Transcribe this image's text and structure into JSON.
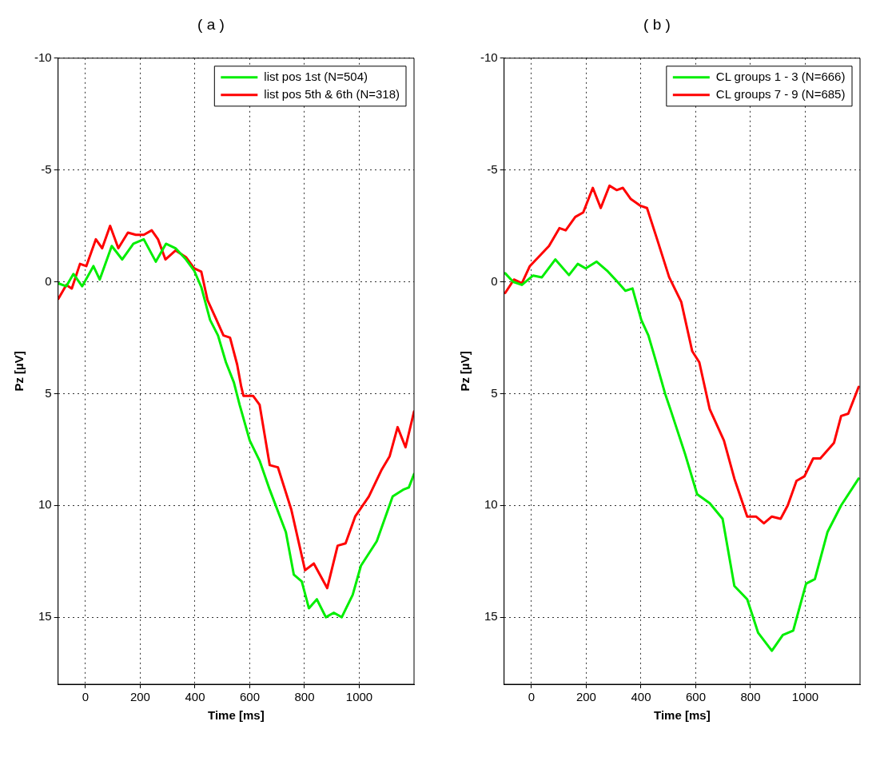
{
  "chart_data": [
    {
      "type": "line",
      "title": "( a )",
      "xlabel": "Time [ms]",
      "ylabel": "Pz [µV]",
      "xlim": [
        -100,
        1200
      ],
      "ylim": [
        18,
        -10
      ],
      "xticks": [
        0,
        200,
        400,
        600,
        800,
        1000
      ],
      "yticks": [
        -10,
        -5,
        0,
        5,
        10,
        15
      ],
      "grid": true,
      "legend": "top right",
      "marker": "none",
      "line_style": "solid",
      "series": [
        {
          "name": "list pos 1st (N=504)",
          "color": "#00ee00",
          "x": [
            -99,
            -70,
            -44,
            -12,
            29,
            52,
            96,
            134,
            175,
            213,
            257,
            294,
            329,
            367,
            397,
            423,
            455,
            484,
            513,
            542,
            563,
            600,
            636,
            673,
            732,
            761,
            790,
            816,
            845,
            878,
            907,
            936,
            976,
            1006,
            1064,
            1122,
            1160,
            1181,
            1200
          ],
          "values": [
            0.07,
            0.2,
            -0.35,
            0.2,
            -0.7,
            -0.1,
            -1.6,
            -1.0,
            -1.7,
            -1.9,
            -0.9,
            -1.7,
            -1.5,
            -1.0,
            -0.5,
            0.24,
            1.7,
            2.4,
            3.6,
            4.5,
            5.5,
            7.1,
            8.0,
            9.3,
            11.2,
            13.1,
            13.4,
            14.6,
            14.2,
            15.0,
            14.8,
            15.0,
            14.0,
            12.7,
            11.6,
            9.6,
            9.3,
            9.2,
            8.6
          ]
        },
        {
          "name": "list pos 5th & 6th (N=318)",
          "color": "#ff0000",
          "x": [
            -99,
            -70,
            -50,
            -20,
            3,
            38,
            61,
            90,
            120,
            155,
            184,
            213,
            242,
            265,
            292,
            329,
            367,
            397,
            423,
            446,
            475,
            504,
            528,
            554,
            569,
            577,
            612,
            636,
            673,
            703,
            752,
            802,
            834,
            883,
            921,
            950,
            985,
            1035,
            1082,
            1111,
            1140,
            1169,
            1200
          ],
          "values": [
            0.76,
            0.14,
            0.3,
            -0.8,
            -0.7,
            -1.9,
            -1.5,
            -2.5,
            -1.5,
            -2.2,
            -2.1,
            -2.1,
            -2.3,
            -1.9,
            -1.0,
            -1.4,
            -1.1,
            -0.6,
            -0.45,
            0.83,
            1.6,
            2.4,
            2.5,
            3.7,
            4.7,
            5.1,
            5.1,
            5.5,
            8.2,
            8.3,
            10.2,
            12.9,
            12.6,
            13.7,
            11.8,
            11.7,
            10.5,
            9.6,
            8.4,
            7.8,
            6.5,
            7.4,
            5.8
          ]
        }
      ]
    },
    {
      "type": "line",
      "title": "( b )",
      "xlabel": "Time [ms]",
      "ylabel": "Pz [µV]",
      "xlim": [
        -100,
        1200
      ],
      "ylim": [
        18,
        -10
      ],
      "xticks": [
        0,
        200,
        400,
        600,
        800,
        1000
      ],
      "yticks": [
        -10,
        -5,
        0,
        5,
        10,
        15
      ],
      "grid": true,
      "legend": "top right",
      "marker": "none",
      "line_style": "solid",
      "series": [
        {
          "name": "CL groups 1 - 3 (N=666)",
          "color": "#00ee00",
          "x": [
            -96,
            -67,
            -35,
            6,
            38,
            87,
            137,
            169,
            198,
            238,
            276,
            314,
            343,
            369,
            401,
            427,
            451,
            488,
            509,
            561,
            605,
            651,
            698,
            741,
            788,
            828,
            878,
            918,
            956,
            1003,
            1035,
            1081,
            1131,
            1195
          ],
          "values": [
            -0.38,
            0,
            0.14,
            -0.28,
            -0.2,
            -1.0,
            -0.3,
            -0.8,
            -0.6,
            -0.9,
            -0.5,
            0,
            0.4,
            0.3,
            1.7,
            2.4,
            3.4,
            5.0,
            5.76,
            7.7,
            9.5,
            9.9,
            10.6,
            13.6,
            14.2,
            15.7,
            16.5,
            15.8,
            15.6,
            13.5,
            13.3,
            11.2,
            10.0,
            8.8
          ]
        },
        {
          "name": "CL groups 7 - 9 (N=685)",
          "color": "#ff0000",
          "x": [
            -96,
            -64,
            -35,
            -6,
            64,
            102,
            125,
            160,
            189,
            224,
            253,
            285,
            311,
            334,
            363,
            398,
            422,
            459,
            503,
            547,
            587,
            613,
            651,
            703,
            741,
            788,
            820,
            849,
            878,
            910,
            936,
            968,
            997,
            1029,
            1055,
            1105,
            1131,
            1157,
            1195
          ],
          "values": [
            0.5,
            -0.1,
            0.07,
            -0.7,
            -1.6,
            -2.4,
            -2.3,
            -2.9,
            -3.1,
            -4.2,
            -3.3,
            -4.3,
            -4.1,
            -4.2,
            -3.7,
            -3.4,
            -3.3,
            -1.9,
            -0.2,
            0.9,
            3.1,
            3.6,
            5.7,
            7.1,
            8.8,
            10.5,
            10.5,
            10.8,
            10.5,
            10.6,
            10.0,
            8.9,
            8.7,
            7.9,
            7.9,
            7.2,
            6.0,
            5.9,
            4.7
          ]
        }
      ]
    }
  ]
}
